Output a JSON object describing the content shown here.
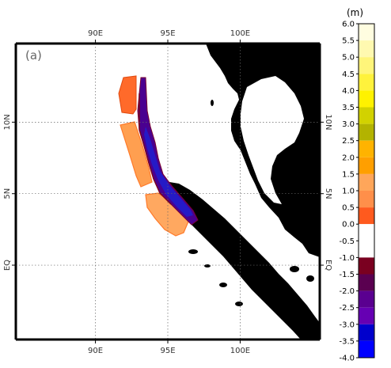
{
  "panel_label": "(a)",
  "axes": {
    "top_lon_labels": [
      "90E",
      "95E",
      "100E"
    ],
    "bottom_lon_labels": [
      "90E",
      "95E",
      "100E"
    ],
    "left_lat_labels": [
      "10N",
      "5N",
      "EQ"
    ],
    "right_lat_labels": [
      "10N",
      "5N",
      "EQ"
    ],
    "lon_values": [
      90,
      95,
      100
    ],
    "lat_values": [
      10,
      5,
      0
    ],
    "lon_range": [
      84.5,
      105.5
    ],
    "lat_range": [
      -5.2,
      15.5
    ],
    "grid": "dotted"
  },
  "colorbar": {
    "unit_label": "(m)",
    "ticks": [
      "6.0",
      "5.5",
      "5.0",
      "4.5",
      "4.0",
      "3.5",
      "3.0",
      "2.5",
      "2.0",
      "1.5",
      "1.0",
      "0.5",
      "0.0",
      "-0.5",
      "-1.0",
      "-1.5",
      "-2.0",
      "-2.5",
      "-3.0",
      "-3.5",
      "-4.0"
    ],
    "colors": [
      "#fffde0",
      "#fff9b0",
      "#fff57a",
      "#fff23c",
      "#fff200",
      "#d2d200",
      "#b3b300",
      "#ffb300",
      "#ff9f00",
      "#ffa65a",
      "#ff8f4a",
      "#ff5a1e",
      "#ffffff",
      "#ffffff",
      "#7a0020",
      "#5a0050",
      "#5a0090",
      "#6600b3",
      "#0000cc",
      "#0000ff",
      "#1f1fb3",
      "#0b0b7a"
    ]
  },
  "land_color": "#000000",
  "ocean_color": "#ffffff"
}
